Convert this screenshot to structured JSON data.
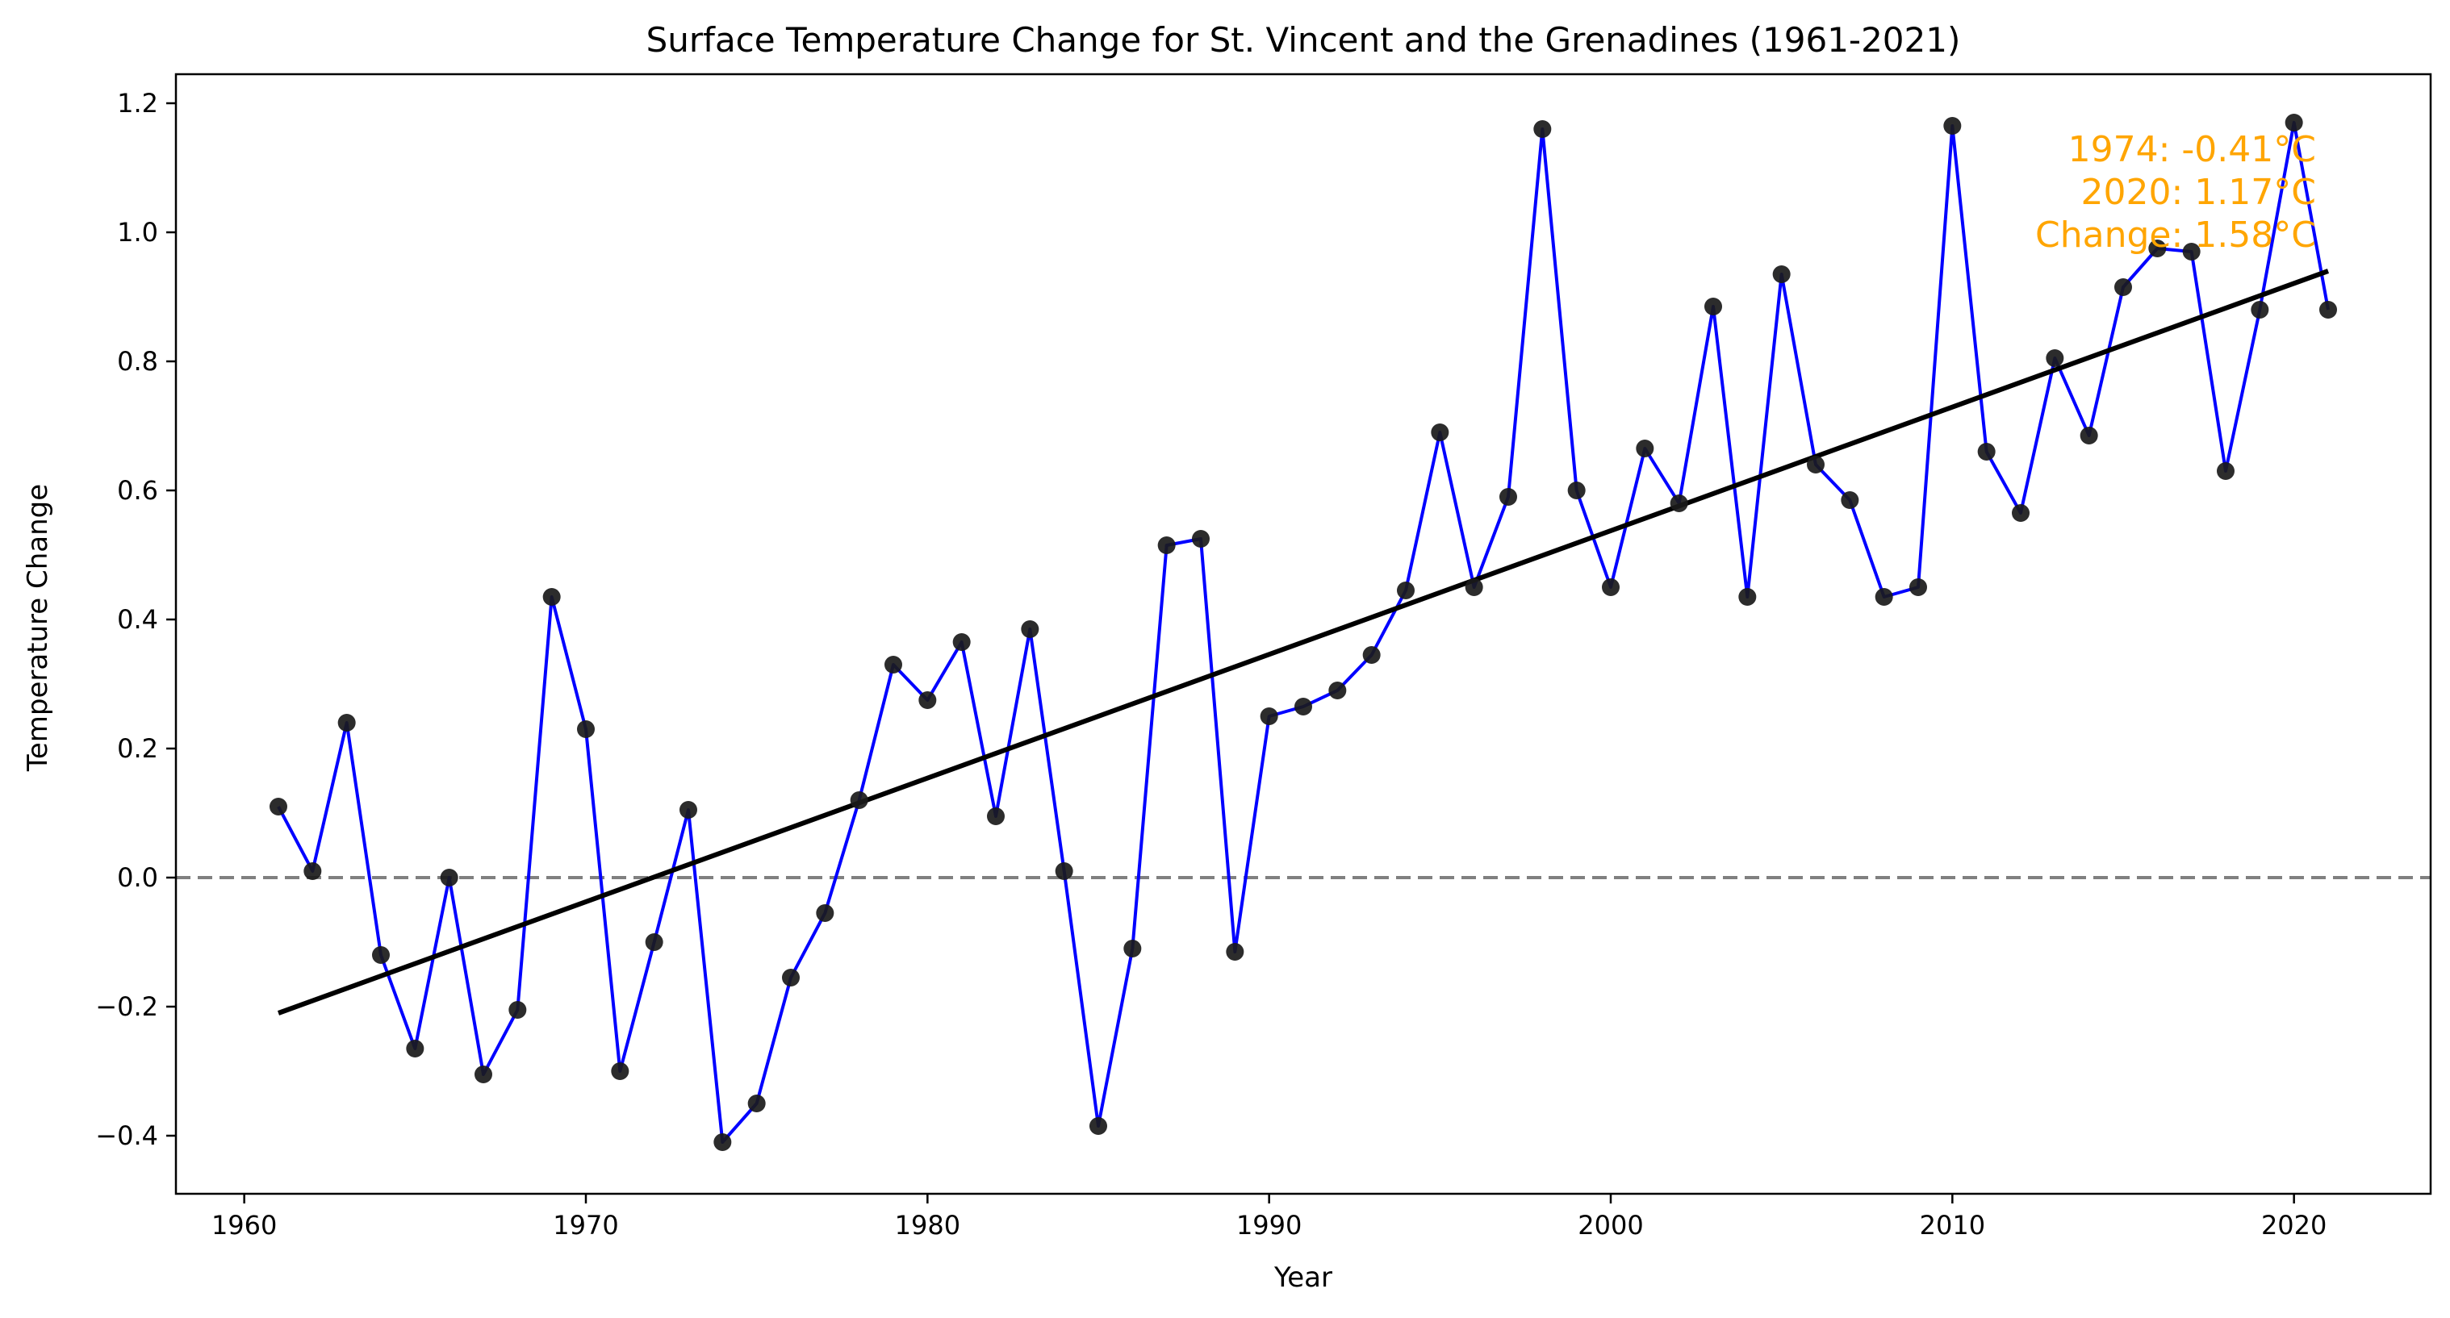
{
  "chart_data": {
    "type": "line",
    "title": "Surface Temperature Change for St. Vincent and the Grenadines (1961-2021)",
    "xlabel": "Year",
    "ylabel": "Temperature Change",
    "xlim": [
      1958,
      2024
    ],
    "ylim": [
      -0.49,
      1.245
    ],
    "x_ticks": [
      1960,
      1970,
      1980,
      1990,
      2000,
      2010,
      2020
    ],
    "y_ticks": [
      -0.4,
      -0.2,
      0.0,
      0.2,
      0.4,
      0.6,
      0.8,
      1.0,
      1.2
    ],
    "y_tick_labels": [
      "−0.4",
      "−0.2",
      "0.0",
      "0.2",
      "0.4",
      "0.6",
      "0.8",
      "1.0",
      "1.2"
    ],
    "grid": false,
    "zero_line": {
      "y": 0,
      "style": "dashed",
      "color": "#808080"
    },
    "series": [
      {
        "type": "line",
        "color": "#0000ff",
        "marker_color": "#1a1a1a",
        "x": [
          1961,
          1962,
          1963,
          1964,
          1965,
          1966,
          1967,
          1968,
          1969,
          1970,
          1971,
          1972,
          1973,
          1974,
          1975,
          1976,
          1977,
          1978,
          1979,
          1980,
          1981,
          1982,
          1983,
          1984,
          1985,
          1986,
          1987,
          1988,
          1989,
          1990,
          1991,
          1992,
          1993,
          1994,
          1995,
          1996,
          1997,
          1998,
          1999,
          2000,
          2001,
          2002,
          2003,
          2004,
          2005,
          2006,
          2007,
          2008,
          2009,
          2010,
          2011,
          2012,
          2013,
          2014,
          2015,
          2016,
          2017,
          2018,
          2019,
          2020,
          2021
        ],
        "y": [
          0.11,
          0.01,
          0.24,
          -0.12,
          -0.265,
          0.0,
          -0.305,
          -0.205,
          0.435,
          0.23,
          -0.3,
          -0.1,
          0.105,
          -0.41,
          -0.35,
          -0.155,
          -0.055,
          0.12,
          0.33,
          0.275,
          0.365,
          0.095,
          0.385,
          0.01,
          -0.385,
          -0.11,
          0.515,
          0.525,
          -0.115,
          0.25,
          0.265,
          0.29,
          0.345,
          0.445,
          0.69,
          0.45,
          0.59,
          1.16,
          0.6,
          0.45,
          0.665,
          0.58,
          0.885,
          0.435,
          0.935,
          0.64,
          0.585,
          0.435,
          0.45,
          1.165,
          0.66,
          0.565,
          0.805,
          0.685,
          0.915,
          0.975,
          0.97,
          0.63,
          0.88,
          1.17,
          0.88
        ]
      },
      {
        "type": "trend",
        "color": "#000000",
        "x": [
          1961,
          2021
        ],
        "y": [
          -0.21,
          0.94
        ]
      }
    ],
    "annotation": {
      "color": "#ffa500",
      "lines": [
        "1974: -0.41°C",
        "2020: 1.17°C",
        "Change: 1.58°C"
      ]
    }
  }
}
